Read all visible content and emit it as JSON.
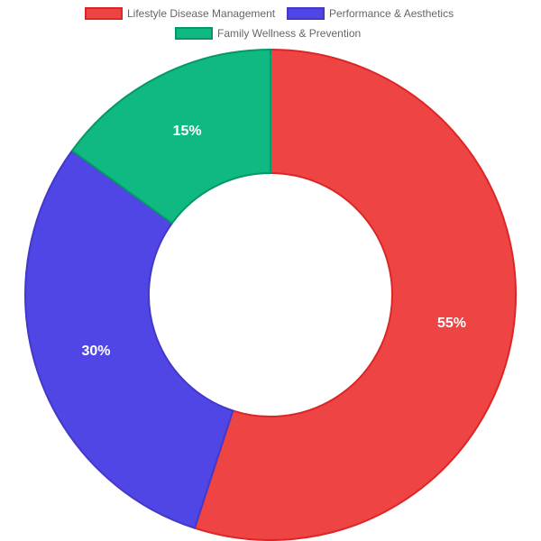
{
  "chart_data": {
    "type": "doughnut",
    "categories": [
      "Lifestyle Disease Management",
      "Performance & Aesthetics",
      "Family Wellness & Prevention"
    ],
    "values": [
      55,
      30,
      15
    ],
    "value_labels": [
      "55%",
      "30%",
      "15%"
    ],
    "colors": [
      "#ef4444",
      "#4f46e5",
      "#10b981"
    ],
    "border_colors": [
      "#dc2626",
      "#4338ca",
      "#059669"
    ]
  }
}
